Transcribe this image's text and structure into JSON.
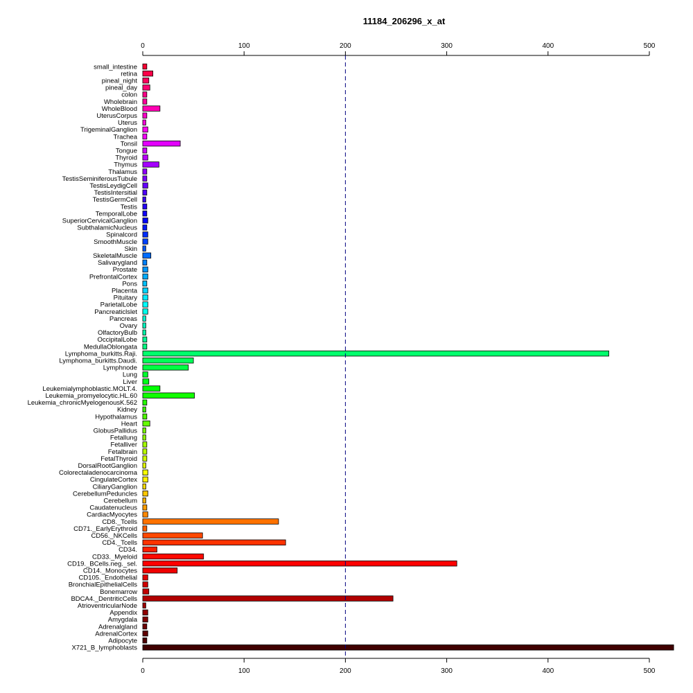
{
  "chart_data": {
    "type": "bar",
    "orientation": "horizontal",
    "title": "11184_206296_x_at",
    "xlabel": "",
    "ylabel": "",
    "xlim": [
      0,
      525
    ],
    "x_ticks": [
      0,
      100,
      200,
      300,
      400,
      500
    ],
    "x_tick_labels": [
      "0",
      "100",
      "200",
      "300",
      "400",
      "500"
    ],
    "axis_position": "top-and-bottom",
    "grid": false,
    "reference_line": {
      "value": 200,
      "style": "dashed",
      "color": "#000080"
    },
    "categories": [
      "small_intestine",
      "retina",
      "pineal_night",
      "pineal_day",
      "colon",
      "Wholebrain",
      "WholeBlood",
      "UterusCorpus",
      "Uterus",
      "TrigeminalGanglion",
      "Trachea",
      "Tonsil",
      "Tongue",
      "Thyroid",
      "Thymus",
      "Thalamus",
      "TestisSeminiferousTubule",
      "TestisLeydigCell",
      "TestisIntersitial",
      "TestisGermCell",
      "Testis",
      "TemporalLobe",
      "SuperiorCervicalGanglion",
      "SubthalamicNucleus",
      "Spinalcord",
      "SmoothMuscle",
      "Skin",
      "SkeletalMuscle",
      "Salivarygland",
      "Prostate",
      "PrefrontalCortex",
      "Pons",
      "Placenta",
      "Pituitary",
      "ParietalLobe",
      "Pancreaticlslet",
      "Pancreas",
      "Ovary",
      "OlfactoryBulb",
      "OccipitalLobe",
      "MedullaOblongata",
      "Lymphoma_burkitts.Raji.",
      "Lymphoma_burkitts.Daudi.",
      "Lymphnode",
      "Lung",
      "Liver",
      "Leukemialymphoblastic.MOLT.4.",
      "Leukemia_promyelocytic.HL.60",
      "Leukemia_chronicMyelogenousK.562",
      "Kidney",
      "Hypothalamus",
      "Heart",
      "GlobusPallidus",
      "Fetallung",
      "Fetalliver",
      "Fetalbrain",
      "FetalThyroid",
      "DorsalRootGanglion",
      "Colorectaladenocarcinoma",
      "CingulateCortex",
      "CiliaryGanglion",
      "CerebellumPeduncles",
      "Cerebellum",
      "Caudatenucleus",
      "CardiacMyocytes",
      "CD8._Tcells",
      "CD71._EarlyErythroid",
      "CD56._NKCells",
      "CD4._Tcells",
      "CD34.",
      "CD33._Myeloid",
      "CD19._BCells.neg._sel.",
      "CD14._Monocytes",
      "CD105._Endothelial",
      "BronchialEpithelialCells",
      "Bonemarrow",
      "BDCA4._DentriticCells",
      "AtrioventricularNode",
      "Appendix",
      "Amygdala",
      "Adrenalgland",
      "AdrenalCortex",
      "Adipocyte",
      "X721_B_lymphoblasts"
    ],
    "values": [
      4,
      10,
      6,
      7,
      4,
      4,
      17,
      4,
      3,
      5,
      4,
      37,
      4,
      5,
      16,
      4,
      4,
      5,
      4,
      3,
      4,
      4,
      5,
      4,
      5,
      5,
      3,
      8,
      4,
      5,
      5,
      4,
      5,
      5,
      5,
      5,
      3,
      3,
      3,
      4,
      4,
      460,
      50,
      45,
      5,
      6,
      17,
      51,
      4,
      3,
      4,
      7,
      3,
      3,
      4,
      4,
      4,
      3,
      5,
      5,
      3,
      5,
      3,
      4,
      5,
      134,
      4,
      59,
      141,
      14,
      60,
      310,
      34,
      5,
      5,
      6,
      247,
      3,
      5,
      5,
      4,
      5,
      4,
      524
    ],
    "colors": [
      "#ff0033",
      "#ff0048",
      "#ff005d",
      "#ff0072",
      "#ff0088",
      "#ff009d",
      "#ff00b2",
      "#ff00c7",
      "#ff00dc",
      "#ff00f1",
      "#f800ff",
      "#e300ff",
      "#ce00ff",
      "#b900ff",
      "#a400ff",
      "#8f00ff",
      "#7a00ff",
      "#6500ff",
      "#5000ff",
      "#3b00ff",
      "#2600ff",
      "#1100ff",
      "#0003ff",
      "#0018ff",
      "#002dff",
      "#0042ff",
      "#0057ff",
      "#006cff",
      "#0081ff",
      "#0096ff",
      "#00abff",
      "#00c0ff",
      "#00d5ff",
      "#00eaff",
      "#00ffff",
      "#00ffea",
      "#00ffd5",
      "#00ffc0",
      "#00ffab",
      "#00ff96",
      "#00ff81",
      "#00ff6c",
      "#00ff57",
      "#00ff42",
      "#00ff2d",
      "#00ff18",
      "#00ff03",
      "#11ff00",
      "#26ff00",
      "#3bff00",
      "#50ff00",
      "#65ff00",
      "#7aff00",
      "#8fff00",
      "#a4ff00",
      "#b9ff00",
      "#ceff00",
      "#e3ff00",
      "#f8ff00",
      "#fff100",
      "#ffdc00",
      "#ffc700",
      "#ffb200",
      "#ff9d00",
      "#ff8800",
      "#ff7200",
      "#ff5d00",
      "#ff4800",
      "#ff3300",
      "#ff1e00",
      "#ff0900",
      "#ff0000",
      "#f00000",
      "#e00000",
      "#d00000",
      "#c00000",
      "#b00000",
      "#a00000",
      "#900000",
      "#800000",
      "#700000",
      "#600000",
      "#500000",
      "#400000"
    ]
  }
}
